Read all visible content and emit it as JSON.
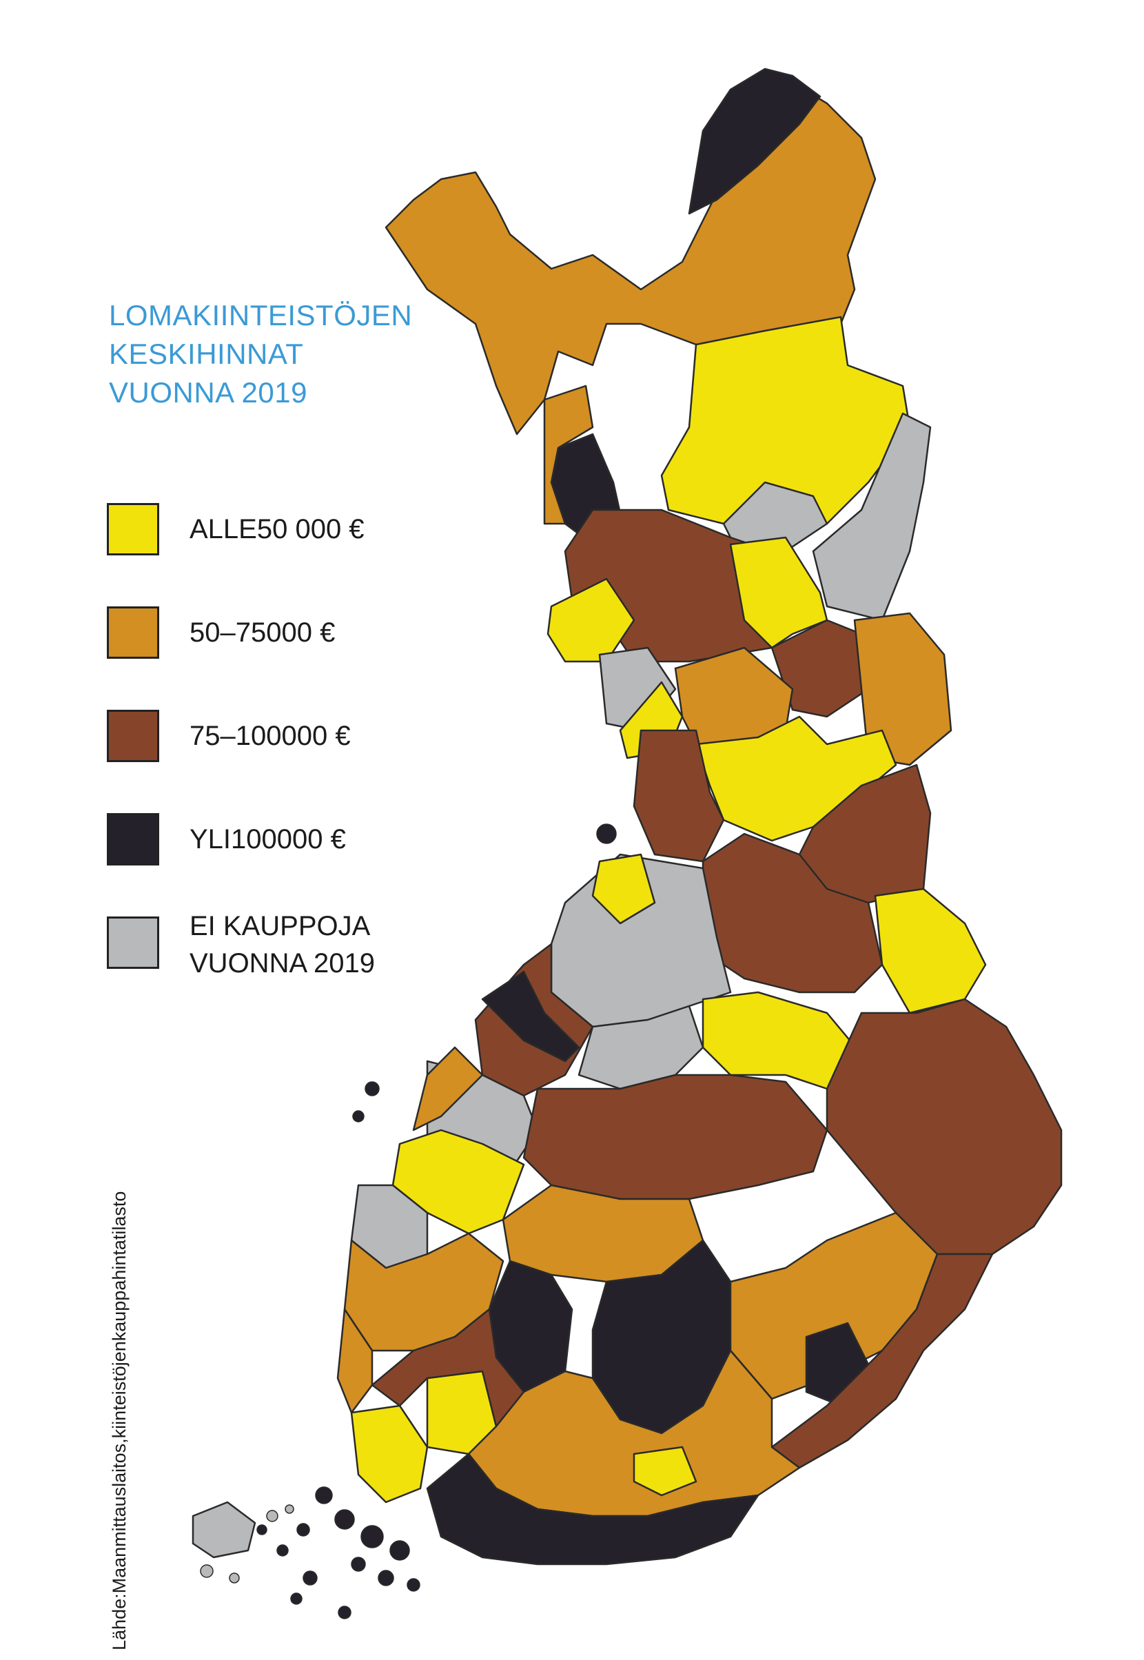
{
  "title": {
    "line1": "LOMAKIINTEISTÖJEN",
    "line2": "KESKIHINNAT",
    "line3": "VUONNA 2019"
  },
  "legend": [
    {
      "label": "ALLE50 000 €",
      "color": "#f2e20c"
    },
    {
      "label": "50–75000 €",
      "color": "#d38f22"
    },
    {
      "label": "75–100000 €",
      "color": "#86452a"
    },
    {
      "label": "YLI100000 €",
      "color": "#24212a"
    },
    {
      "label": "EI KAUPPOJA",
      "label2": "VUONNA 2019",
      "color": "#b8b9bb"
    }
  ],
  "source": "Lähde:Maanmittauslaitos,kiinteistöjenkauppahintatilasto",
  "colors": {
    "title": "#3a9ad6",
    "border": "#2a2a2a"
  }
}
